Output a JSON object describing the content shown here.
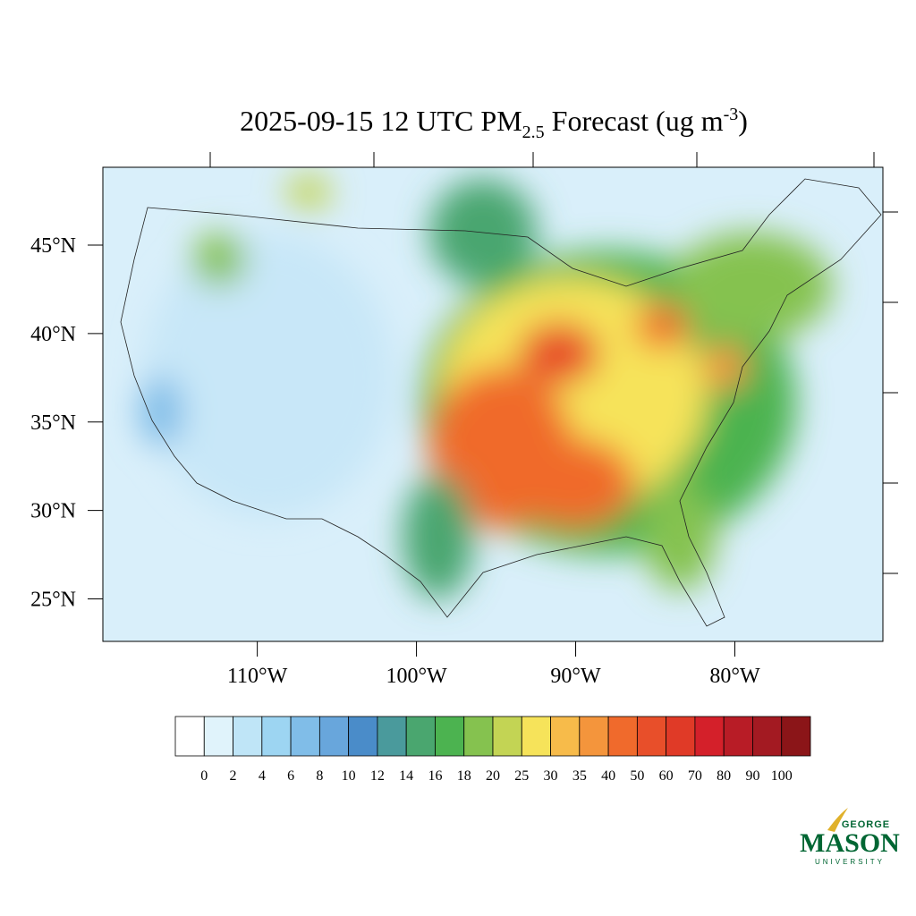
{
  "map": {
    "title": {
      "text": "2025-09-15 12 UTC PM",
      "subscript": "2.5",
      "text2": " Forecast (ug m",
      "superscript": "-3",
      "end": ")"
    },
    "xlim": [
      -119.7,
      -70.7
    ],
    "ylim": [
      22.6,
      49.4
    ],
    "xticks": [
      {
        "value": -110,
        "label": "110°W"
      },
      {
        "value": -100,
        "label": "100°W"
      },
      {
        "value": -90,
        "label": "90°W"
      },
      {
        "value": -80,
        "label": "80°W"
      }
    ],
    "yticks": [
      {
        "value": 25,
        "label": "25°N"
      },
      {
        "value": 30,
        "label": "30°N"
      },
      {
        "value": 35,
        "label": "35°N"
      },
      {
        "value": 40,
        "label": "40°N"
      },
      {
        "value": 45,
        "label": "45°N"
      }
    ]
  },
  "colorbar": {
    "levels": [
      0,
      2,
      4,
      6,
      8,
      10,
      12,
      14,
      16,
      18,
      20,
      25,
      30,
      35,
      40,
      50,
      60,
      70,
      80,
      90,
      100
    ],
    "colors": [
      "#ffffff",
      "#e0f3fb",
      "#bfe5f7",
      "#9dd5f2",
      "#80bde8",
      "#68a6dc",
      "#4a8cc9",
      "#4a9a9c",
      "#4aa66f",
      "#4cb350",
      "#85c24f",
      "#c3d454",
      "#f6e35a",
      "#f7bb4a",
      "#f4953c",
      "#f06a2c",
      "#e84f2a",
      "#e03a27",
      "#d4202a",
      "#b81c26",
      "#a31a22",
      "#8b1518"
    ]
  },
  "logo": {
    "top": "GEORGE",
    "main": "MASON",
    "bottom": "UNIVERSITY"
  }
}
